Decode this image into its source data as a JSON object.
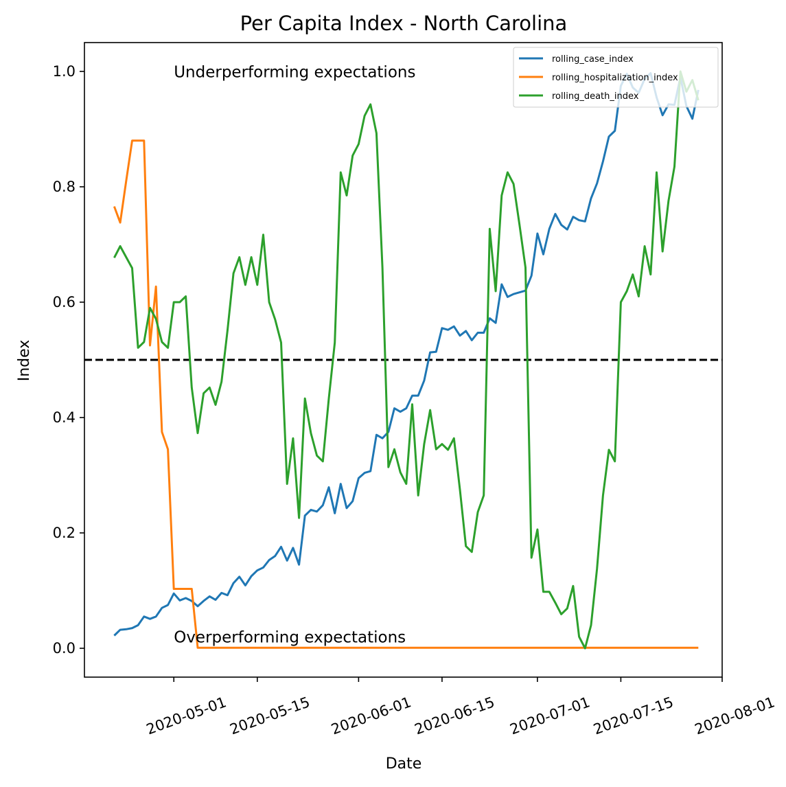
{
  "chart_data": {
    "type": "line",
    "title": "Per Capita Index - North Carolina",
    "xlabel": "Date",
    "ylabel": "Index",
    "x_axis_type": "date",
    "xlim": [
      "2020-04-16",
      "2020-08-01"
    ],
    "ylim": [
      -0.05,
      1.05
    ],
    "xticks": [
      "2020-05-01",
      "2020-05-15",
      "2020-06-01",
      "2020-06-15",
      "2020-07-01",
      "2020-07-15",
      "2020-08-01"
    ],
    "yticks": [
      0.0,
      0.2,
      0.4,
      0.6,
      0.8,
      1.0
    ],
    "ytick_labels": [
      "0.0",
      "0.2",
      "0.4",
      "0.6",
      "0.8",
      "1.0"
    ],
    "grid": false,
    "legend_position": "top-right",
    "reference_line": {
      "y": 0.5,
      "style": "dashed",
      "color": "#000000"
    },
    "annotations": [
      {
        "text": "Underperforming expectations",
        "x": "2020-05-01",
        "y": 0.99
      },
      {
        "text": "Overperforming expectations",
        "x": "2020-05-01",
        "y": 0.01
      }
    ],
    "series": [
      {
        "name": "rolling_case_index",
        "color": "#1f77b4",
        "points": [
          [
            "2020-04-21",
            0.022
          ],
          [
            "2020-04-22",
            0.032
          ],
          [
            "2020-04-23",
            0.033
          ],
          [
            "2020-04-24",
            0.035
          ],
          [
            "2020-04-25",
            0.04
          ],
          [
            "2020-04-26",
            0.055
          ],
          [
            "2020-04-27",
            0.051
          ],
          [
            "2020-04-28",
            0.055
          ],
          [
            "2020-04-29",
            0.07
          ],
          [
            "2020-04-30",
            0.075
          ],
          [
            "2020-05-01",
            0.095
          ],
          [
            "2020-05-02",
            0.083
          ],
          [
            "2020-05-03",
            0.087
          ],
          [
            "2020-05-04",
            0.082
          ],
          [
            "2020-05-05",
            0.073
          ],
          [
            "2020-05-06",
            0.082
          ],
          [
            "2020-05-07",
            0.09
          ],
          [
            "2020-05-08",
            0.084
          ],
          [
            "2020-05-09",
            0.096
          ],
          [
            "2020-05-10",
            0.092
          ],
          [
            "2020-05-11",
            0.113
          ],
          [
            "2020-05-12",
            0.124
          ],
          [
            "2020-05-13",
            0.109
          ],
          [
            "2020-05-14",
            0.125
          ],
          [
            "2020-05-15",
            0.135
          ],
          [
            "2020-05-16",
            0.14
          ],
          [
            "2020-05-17",
            0.153
          ],
          [
            "2020-05-18",
            0.16
          ],
          [
            "2020-05-19",
            0.176
          ],
          [
            "2020-05-20",
            0.152
          ],
          [
            "2020-05-21",
            0.174
          ],
          [
            "2020-05-22",
            0.145
          ],
          [
            "2020-05-23",
            0.23
          ],
          [
            "2020-05-24",
            0.24
          ],
          [
            "2020-05-25",
            0.237
          ],
          [
            "2020-05-26",
            0.248
          ],
          [
            "2020-05-27",
            0.279
          ],
          [
            "2020-05-28",
            0.234
          ],
          [
            "2020-05-29",
            0.285
          ],
          [
            "2020-05-30",
            0.243
          ],
          [
            "2020-05-31",
            0.255
          ],
          [
            "2020-06-01",
            0.295
          ],
          [
            "2020-06-02",
            0.304
          ],
          [
            "2020-06-03",
            0.307
          ],
          [
            "2020-06-04",
            0.37
          ],
          [
            "2020-06-05",
            0.364
          ],
          [
            "2020-06-06",
            0.375
          ],
          [
            "2020-06-07",
            0.416
          ],
          [
            "2020-06-08",
            0.41
          ],
          [
            "2020-06-09",
            0.416
          ],
          [
            "2020-06-10",
            0.438
          ],
          [
            "2020-06-11",
            0.438
          ],
          [
            "2020-06-12",
            0.464
          ],
          [
            "2020-06-13",
            0.513
          ],
          [
            "2020-06-14",
            0.514
          ],
          [
            "2020-06-15",
            0.555
          ],
          [
            "2020-06-16",
            0.552
          ],
          [
            "2020-06-17",
            0.558
          ],
          [
            "2020-06-18",
            0.542
          ],
          [
            "2020-06-19",
            0.55
          ],
          [
            "2020-06-20",
            0.534
          ],
          [
            "2020-06-21",
            0.547
          ],
          [
            "2020-06-22",
            0.547
          ],
          [
            "2020-06-23",
            0.572
          ],
          [
            "2020-06-24",
            0.564
          ],
          [
            "2020-06-25",
            0.631
          ],
          [
            "2020-06-26",
            0.609
          ],
          [
            "2020-06-27",
            0.614
          ],
          [
            "2020-06-28",
            0.617
          ],
          [
            "2020-06-29",
            0.62
          ],
          [
            "2020-06-30",
            0.646
          ],
          [
            "2020-07-01",
            0.719
          ],
          [
            "2020-07-02",
            0.683
          ],
          [
            "2020-07-03",
            0.727
          ],
          [
            "2020-07-04",
            0.753
          ],
          [
            "2020-07-05",
            0.734
          ],
          [
            "2020-07-06",
            0.726
          ],
          [
            "2020-07-07",
            0.748
          ],
          [
            "2020-07-08",
            0.742
          ],
          [
            "2020-07-09",
            0.74
          ],
          [
            "2020-07-10",
            0.78
          ],
          [
            "2020-07-11",
            0.806
          ],
          [
            "2020-07-12",
            0.844
          ],
          [
            "2020-07-13",
            0.887
          ],
          [
            "2020-07-14",
            0.897
          ],
          [
            "2020-07-15",
            0.975
          ],
          [
            "2020-07-16",
            0.996
          ],
          [
            "2020-07-17",
            0.972
          ],
          [
            "2020-07-18",
            0.963
          ],
          [
            "2020-07-19",
            0.987
          ],
          [
            "2020-07-20",
            0.997
          ],
          [
            "2020-07-21",
            0.955
          ],
          [
            "2020-07-22",
            0.924
          ],
          [
            "2020-07-23",
            0.943
          ],
          [
            "2020-07-24",
            0.942
          ],
          [
            "2020-07-25",
            0.99
          ],
          [
            "2020-07-26",
            0.94
          ],
          [
            "2020-07-27",
            0.918
          ],
          [
            "2020-07-28",
            0.968
          ]
        ]
      },
      {
        "name": "rolling_hospitalization_index",
        "color": "#ff7f0e",
        "points": [
          [
            "2020-04-21",
            0.766
          ],
          [
            "2020-04-22",
            0.738
          ],
          [
            "2020-04-23",
            0.81
          ],
          [
            "2020-04-24",
            0.88
          ],
          [
            "2020-04-25",
            0.88
          ],
          [
            "2020-04-26",
            0.88
          ],
          [
            "2020-04-27",
            0.525
          ],
          [
            "2020-04-28",
            0.627
          ],
          [
            "2020-04-29",
            0.375
          ],
          [
            "2020-04-30",
            0.345
          ],
          [
            "2020-05-01",
            0.103
          ],
          [
            "2020-05-02",
            0.103
          ],
          [
            "2020-05-03",
            0.103
          ],
          [
            "2020-05-04",
            0.103
          ],
          [
            "2020-05-05",
            0.001
          ],
          [
            "2020-05-06",
            0.001
          ],
          [
            "2020-05-15",
            0.001
          ],
          [
            "2020-06-01",
            0.001
          ],
          [
            "2020-06-15",
            0.001
          ],
          [
            "2020-07-01",
            0.001
          ],
          [
            "2020-07-15",
            0.001
          ],
          [
            "2020-07-28",
            0.001
          ]
        ]
      },
      {
        "name": "rolling_death_index",
        "color": "#2ca02c",
        "points": [
          [
            "2020-04-21",
            0.677
          ],
          [
            "2020-04-22",
            0.697
          ],
          [
            "2020-04-23",
            0.678
          ],
          [
            "2020-04-24",
            0.659
          ],
          [
            "2020-04-25",
            0.521
          ],
          [
            "2020-04-26",
            0.531
          ],
          [
            "2020-04-27",
            0.59
          ],
          [
            "2020-04-28",
            0.571
          ],
          [
            "2020-04-29",
            0.531
          ],
          [
            "2020-04-30",
            0.521
          ],
          [
            "2020-05-01",
            0.6
          ],
          [
            "2020-05-02",
            0.6
          ],
          [
            "2020-05-03",
            0.61
          ],
          [
            "2020-05-04",
            0.452
          ],
          [
            "2020-05-05",
            0.373
          ],
          [
            "2020-05-06",
            0.442
          ],
          [
            "2020-05-07",
            0.452
          ],
          [
            "2020-05-08",
            0.422
          ],
          [
            "2020-05-09",
            0.462
          ],
          [
            "2020-05-10",
            0.551
          ],
          [
            "2020-05-11",
            0.65
          ],
          [
            "2020-05-12",
            0.678
          ],
          [
            "2020-05-13",
            0.63
          ],
          [
            "2020-05-14",
            0.678
          ],
          [
            "2020-05-15",
            0.63
          ],
          [
            "2020-05-16",
            0.717
          ],
          [
            "2020-05-17",
            0.6
          ],
          [
            "2020-05-18",
            0.57
          ],
          [
            "2020-05-19",
            0.53
          ],
          [
            "2020-05-20",
            0.285
          ],
          [
            "2020-05-21",
            0.364
          ],
          [
            "2020-05-22",
            0.226
          ],
          [
            "2020-05-23",
            0.433
          ],
          [
            "2020-05-24",
            0.373
          ],
          [
            "2020-05-25",
            0.334
          ],
          [
            "2020-05-26",
            0.324
          ],
          [
            "2020-05-27",
            0.433
          ],
          [
            "2020-05-28",
            0.53
          ],
          [
            "2020-05-29",
            0.825
          ],
          [
            "2020-05-30",
            0.785
          ],
          [
            "2020-05-31",
            0.854
          ],
          [
            "2020-06-01",
            0.874
          ],
          [
            "2020-06-02",
            0.923
          ],
          [
            "2020-06-03",
            0.943
          ],
          [
            "2020-06-04",
            0.893
          ],
          [
            "2020-06-05",
            0.66
          ],
          [
            "2020-06-06",
            0.314
          ],
          [
            "2020-06-07",
            0.345
          ],
          [
            "2020-06-08",
            0.305
          ],
          [
            "2020-06-09",
            0.285
          ],
          [
            "2020-06-10",
            0.423
          ],
          [
            "2020-06-11",
            0.265
          ],
          [
            "2020-06-12",
            0.354
          ],
          [
            "2020-06-13",
            0.413
          ],
          [
            "2020-06-14",
            0.345
          ],
          [
            "2020-06-15",
            0.354
          ],
          [
            "2020-06-16",
            0.344
          ],
          [
            "2020-06-17",
            0.364
          ],
          [
            "2020-06-18",
            0.275
          ],
          [
            "2020-06-19",
            0.177
          ],
          [
            "2020-06-20",
            0.167
          ],
          [
            "2020-06-21",
            0.236
          ],
          [
            "2020-06-22",
            0.265
          ],
          [
            "2020-06-23",
            0.727
          ],
          [
            "2020-06-24",
            0.619
          ],
          [
            "2020-06-25",
            0.785
          ],
          [
            "2020-06-26",
            0.825
          ],
          [
            "2020-06-27",
            0.805
          ],
          [
            "2020-06-28",
            0.734
          ],
          [
            "2020-06-29",
            0.66
          ],
          [
            "2020-06-30",
            0.157
          ],
          [
            "2020-07-01",
            0.206
          ],
          [
            "2020-07-02",
            0.098
          ],
          [
            "2020-07-03",
            0.098
          ],
          [
            "2020-07-04",
            0.079
          ],
          [
            "2020-07-05",
            0.059
          ],
          [
            "2020-07-06",
            0.069
          ],
          [
            "2020-07-07",
            0.108
          ],
          [
            "2020-07-08",
            0.02
          ],
          [
            "2020-07-09",
            0.0
          ],
          [
            "2020-07-10",
            0.04
          ],
          [
            "2020-07-11",
            0.138
          ],
          [
            "2020-07-12",
            0.265
          ],
          [
            "2020-07-13",
            0.344
          ],
          [
            "2020-07-14",
            0.324
          ],
          [
            "2020-07-15",
            0.6
          ],
          [
            "2020-07-16",
            0.619
          ],
          [
            "2020-07-17",
            0.648
          ],
          [
            "2020-07-18",
            0.61
          ],
          [
            "2020-07-19",
            0.697
          ],
          [
            "2020-07-20",
            0.648
          ],
          [
            "2020-07-21",
            0.825
          ],
          [
            "2020-07-22",
            0.688
          ],
          [
            "2020-07-23",
            0.776
          ],
          [
            "2020-07-24",
            0.835
          ],
          [
            "2020-07-25",
            1.0
          ],
          [
            "2020-07-26",
            0.965
          ],
          [
            "2020-07-27",
            0.985
          ],
          [
            "2020-07-28",
            0.95
          ]
        ]
      }
    ]
  }
}
